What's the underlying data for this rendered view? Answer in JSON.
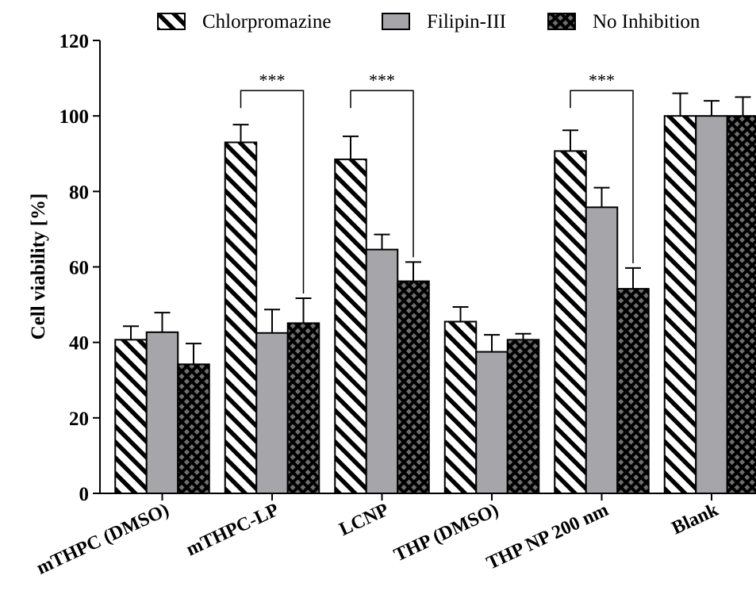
{
  "chart_data": {
    "type": "bar",
    "title": "",
    "xlabel": "",
    "ylabel": "Cell viability [%]",
    "ylim": [
      0,
      120
    ],
    "yticks": [
      0,
      20,
      40,
      60,
      80,
      100,
      120
    ],
    "grid": false,
    "legend_position": "top",
    "categories": [
      "mTHPC (DMSO)",
      "mTHPC-LP",
      "LCNP",
      "THP (DMSO)",
      "THP NP 200 nm",
      "Blank"
    ],
    "series": [
      {
        "name": "Chlorpromazine",
        "pattern": "diagonal-stripes",
        "color": "#ffffff",
        "values": [
          40.7,
          93,
          88.5,
          45.5,
          90.7,
          100
        ],
        "errors": [
          3.6,
          4.7,
          6.1,
          3.9,
          5.5,
          6
        ]
      },
      {
        "name": "Filipin-III",
        "pattern": "solid",
        "color": "#a5a5aa",
        "values": [
          42.7,
          42.5,
          64.6,
          37.5,
          75.8,
          100
        ],
        "errors": [
          5.2,
          6.2,
          4,
          4.5,
          5.2,
          4
        ]
      },
      {
        "name": "No Inhibition",
        "pattern": "crosshatch",
        "color": "#3a3a3a",
        "values": [
          34.2,
          45.1,
          56.2,
          40.7,
          54.2,
          100
        ],
        "errors": [
          5.5,
          6.6,
          5.1,
          1.6,
          5.5,
          5
        ]
      }
    ],
    "annotations": [
      {
        "text": "***",
        "category_index": 1,
        "from_series": 0,
        "to_series": 2
      },
      {
        "text": "***",
        "category_index": 2,
        "from_series": 0,
        "to_series": 2
      },
      {
        "text": "***",
        "category_index": 4,
        "from_series": 0,
        "to_series": 2
      }
    ]
  }
}
